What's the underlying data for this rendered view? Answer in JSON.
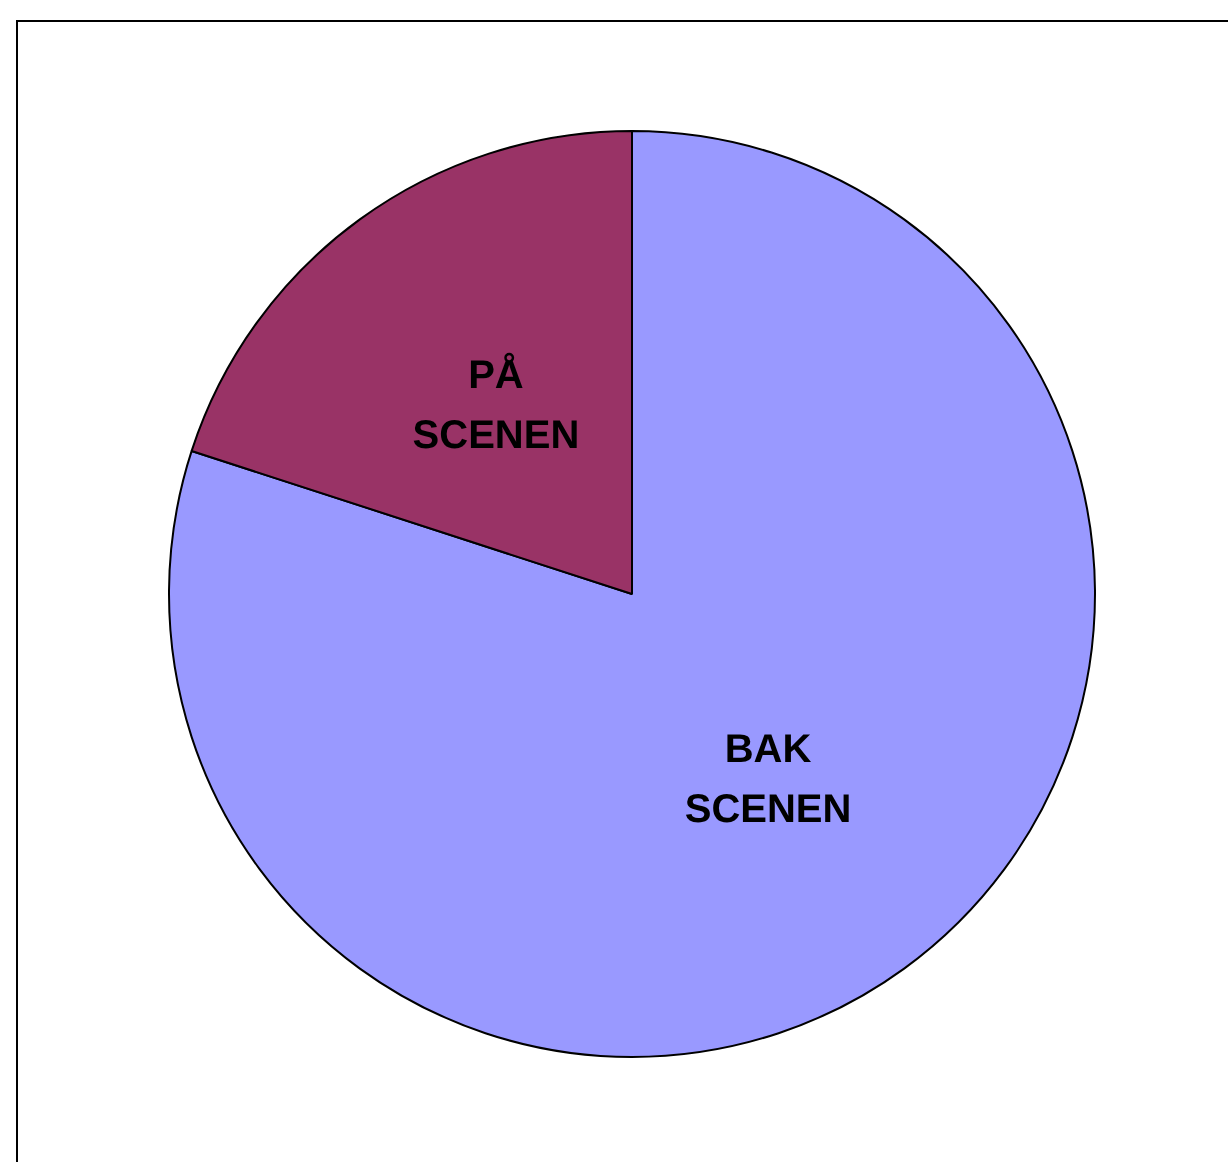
{
  "chart_data": {
    "type": "pie",
    "categories": [
      "BAK SCENEN",
      "PÅ SCENEN"
    ],
    "values": [
      80,
      20
    ],
    "colors": [
      "#9999ff",
      "#993366"
    ],
    "legend": false
  }
}
